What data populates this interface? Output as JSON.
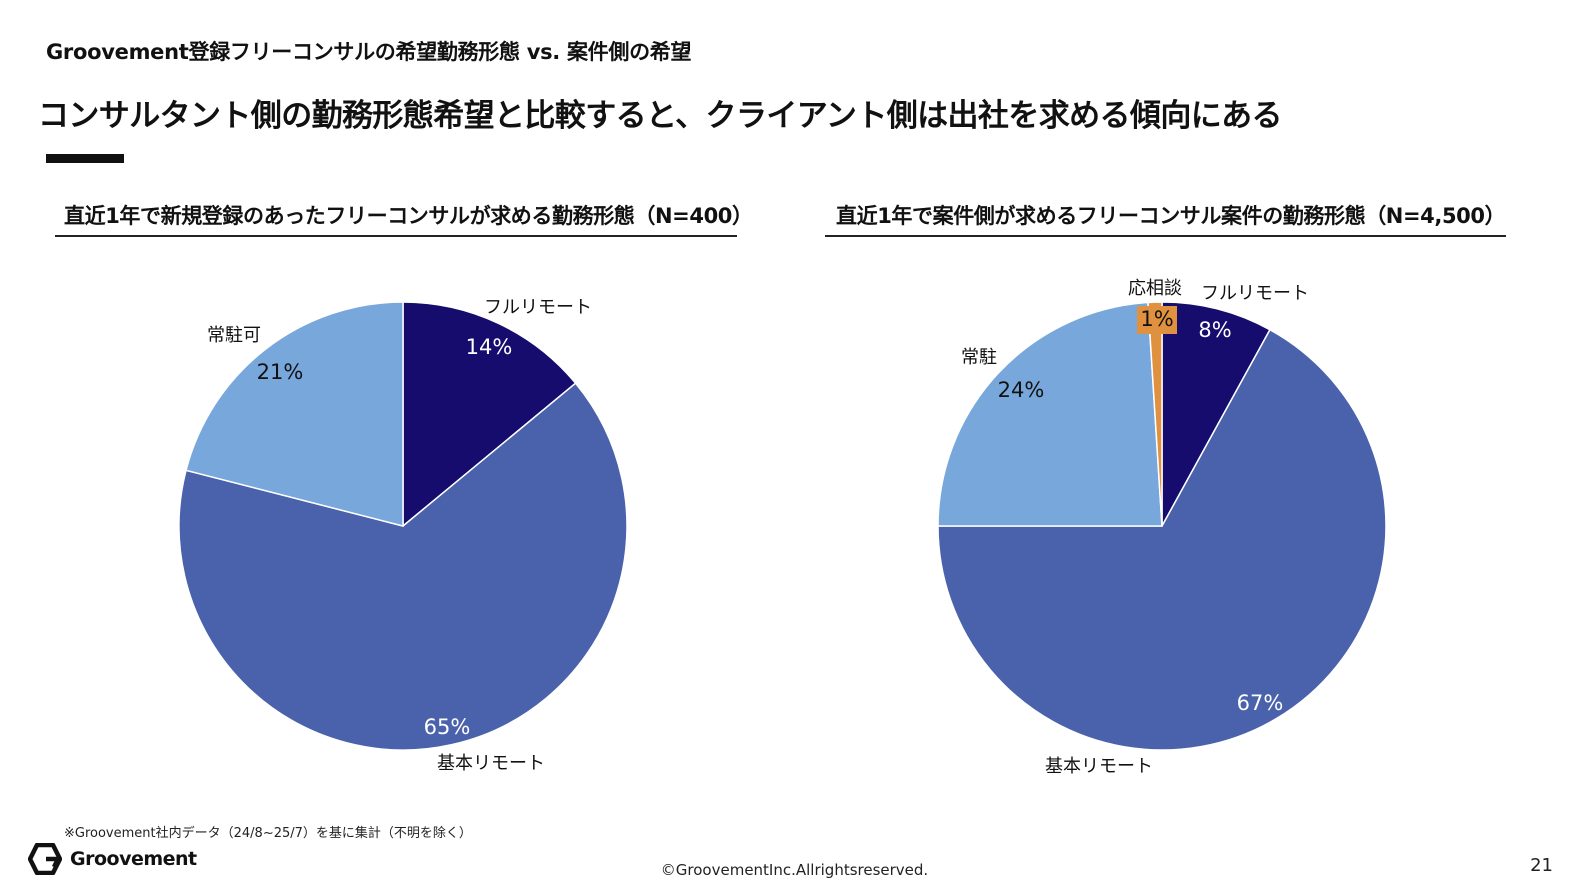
{
  "header": {
    "supertitle": "Groovement登録フリーコンサルの希望勤務形態 vs. 案件側の希望",
    "headline": "コンサルタント側の勤務形態希望と比較すると、クライアント側は出社を求める傾向にある"
  },
  "chart_data": [
    {
      "type": "pie",
      "title": "直近1年で新規登録のあったフリーコンサルが求める勤務形態（N=400）",
      "slices": [
        {
          "label": "フルリモート",
          "value": 14,
          "value_label": "14%",
          "color": "#150c6e",
          "value_text_color": "#ffffff"
        },
        {
          "label": "基本リモート",
          "value": 65,
          "value_label": "65%",
          "color": "#4a61ab",
          "value_text_color": "#ffffff"
        },
        {
          "label": "常駐可",
          "value": 21,
          "value_label": "21%",
          "color": "#78a7db",
          "value_text_color": "#111111"
        }
      ]
    },
    {
      "type": "pie",
      "title": "直近1年で案件側が求めるフリーコンサル案件の勤務形態（N=4,500）",
      "slices": [
        {
          "label": "フルリモート",
          "value": 8,
          "value_label": "8%",
          "color": "#150c6e",
          "value_text_color": "#ffffff"
        },
        {
          "label": "基本リモート",
          "value": 67,
          "value_label": "67%",
          "color": "#4a61ab",
          "value_text_color": "#ffffff"
        },
        {
          "label": "常駐",
          "value": 24,
          "value_label": "24%",
          "color": "#78a7db",
          "value_text_color": "#111111"
        },
        {
          "label": "応相談",
          "value": 1,
          "value_label": "1%",
          "color": "#e0913f",
          "value_text_color": "#111111"
        }
      ]
    }
  ],
  "footer": {
    "footnote": "※Groovement社内データ（24/8~25/7）を基に集計（不明を除く）",
    "logo_text": "Groovement",
    "copyright": "©GroovementInc.Allrightsreserved.",
    "page_number": "21"
  }
}
